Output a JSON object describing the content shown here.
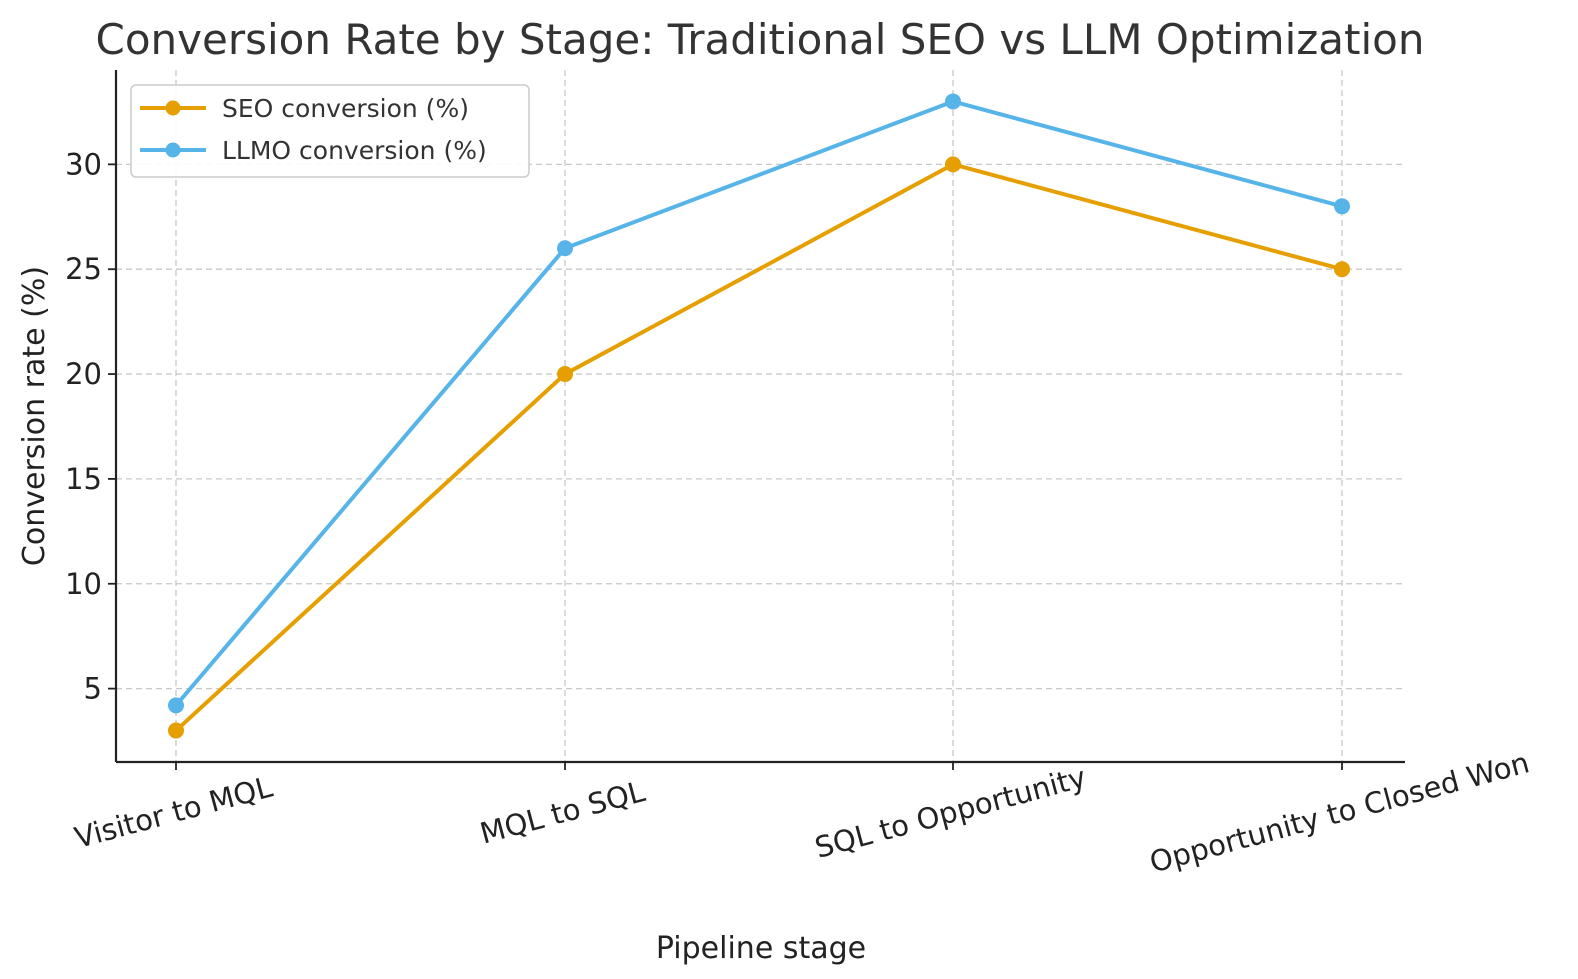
{
  "chart_data": {
    "type": "line",
    "title": "Conversion Rate by Stage: Traditional SEO vs LLM Optimization",
    "xlabel": "Pipeline stage",
    "ylabel": "Conversion rate (%)",
    "categories": [
      "Visitor to MQL",
      "MQL to SQL",
      "SQL to Opportunity",
      "Opportunity to Closed Won"
    ],
    "ylim": [
      1.5,
      34.5
    ],
    "yticks": [
      5,
      10,
      15,
      20,
      25,
      30
    ],
    "grid": true,
    "legend_position": "top-left",
    "series": [
      {
        "name": "SEO conversion (%)",
        "color": "#E69F00",
        "values": [
          3,
          20,
          30,
          25
        ]
      },
      {
        "name": "LLMO conversion (%)",
        "color": "#56B4E9",
        "values": [
          4.2,
          26,
          33,
          28
        ]
      }
    ]
  }
}
